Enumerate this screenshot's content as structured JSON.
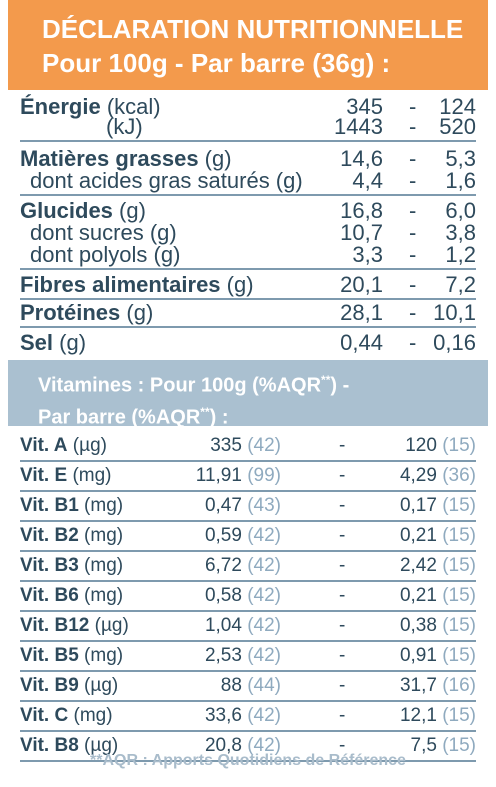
{
  "header": {
    "line1": "DÉCLARATION NUTRITIONNELLE",
    "line2": "Pour 100g - Par barre (36g) :"
  },
  "nutrition": [
    {
      "label_bold": "Énergie",
      "label_rest": " (kcal)",
      "v100": "345",
      "vbar": "124",
      "sep": false
    },
    {
      "label_bold": "",
      "label_rest": "(kJ)",
      "indent": true,
      "v100": "1443",
      "vbar": "520",
      "sep": true
    },
    {
      "label_bold": "Matières grasses",
      "label_rest": " (g)",
      "v100": "14,6",
      "vbar": "5,3",
      "sep": false
    },
    {
      "label_bold": "",
      "label_rest": "dont acides gras saturés (g)",
      "sub": true,
      "v100": "4,4",
      "vbar": "1,6",
      "sep": true
    },
    {
      "label_bold": "Glucides",
      "label_rest": " (g)",
      "v100": "16,8",
      "vbar": "6,0",
      "sep": false
    },
    {
      "label_bold": "",
      "label_rest": "dont sucres (g)",
      "sub": true,
      "v100": "10,7",
      "vbar": "3,8",
      "sep": false
    },
    {
      "label_bold": "",
      "label_rest": "dont polyols (g)",
      "sub": true,
      "v100": "3,3",
      "vbar": "1,2",
      "sep": true
    },
    {
      "label_bold": "Fibres alimentaires",
      "label_rest": " (g)",
      "v100": "20,1",
      "vbar": "7,2",
      "sep": true
    },
    {
      "label_bold": "Protéines",
      "label_rest": " (g)",
      "v100": "28,1",
      "vbar": "10,1",
      "sep": true
    },
    {
      "label_bold": "Sel",
      "label_rest": " (g)",
      "v100": "0,44",
      "vbar": "0,16",
      "sep": false
    }
  ],
  "vitamins_header": {
    "line1": "Vitamines : Pour 100g (%AQR",
    "line1_sup": "**",
    "line1_end": ") -",
    "line2": "Par barre (%AQR",
    "line2_sup": "**",
    "line2_end": ") :"
  },
  "vitamins": [
    {
      "name": "Vit. A",
      "unit": " (µg)",
      "v100": "335",
      "p100": "(42)",
      "vbar": "120",
      "pbar": "(15)"
    },
    {
      "name": "Vit. E",
      "unit": " (mg)",
      "v100": "11,91",
      "p100": "(99)",
      "vbar": "4,29",
      "pbar": "(36)"
    },
    {
      "name": "Vit. B1",
      "unit": " (mg)",
      "v100": "0,47",
      "p100": "(43)",
      "vbar": "0,17",
      "pbar": "(15)"
    },
    {
      "name": "Vit. B2",
      "unit": " (mg)",
      "v100": "0,59",
      "p100": "(42)",
      "vbar": "0,21",
      "pbar": "(15)"
    },
    {
      "name": "Vit. B3",
      "unit": " (mg)",
      "v100": "6,72",
      "p100": "(42)",
      "vbar": "2,42",
      "pbar": "(15)"
    },
    {
      "name": "Vit. B6",
      "unit": " (mg)",
      "v100": "0,58",
      "p100": "(42)",
      "vbar": "0,21",
      "pbar": "(15)"
    },
    {
      "name": "Vit. B12",
      "unit": " (µg)",
      "v100": "1,04",
      "p100": "(42)",
      "vbar": "0,38",
      "pbar": "(15)"
    },
    {
      "name": "Vit. B5",
      "unit": " (mg)",
      "v100": "2,53",
      "p100": "(42)",
      "vbar": "0,91",
      "pbar": "(15)"
    },
    {
      "name": "Vit. B9",
      "unit": " (µg)",
      "v100": "88",
      "p100": "(44)",
      "vbar": "31,7",
      "pbar": "(16)"
    },
    {
      "name": "Vit. C",
      "unit": " (mg)",
      "v100": "33,6",
      "p100": "(42)",
      "vbar": "12,1",
      "pbar": "(15)"
    },
    {
      "name": "Vit. B8",
      "unit": " (µg)",
      "v100": "20,8",
      "p100": "(42)",
      "vbar": "7,5",
      "pbar": "(15)"
    }
  ],
  "dash": "-",
  "footnote": "**AQR : Apports Quotidiens de Référence",
  "colors": {
    "orange": "#f39a4c",
    "blue": "#aac0d0",
    "text": "#2e4a5c"
  }
}
